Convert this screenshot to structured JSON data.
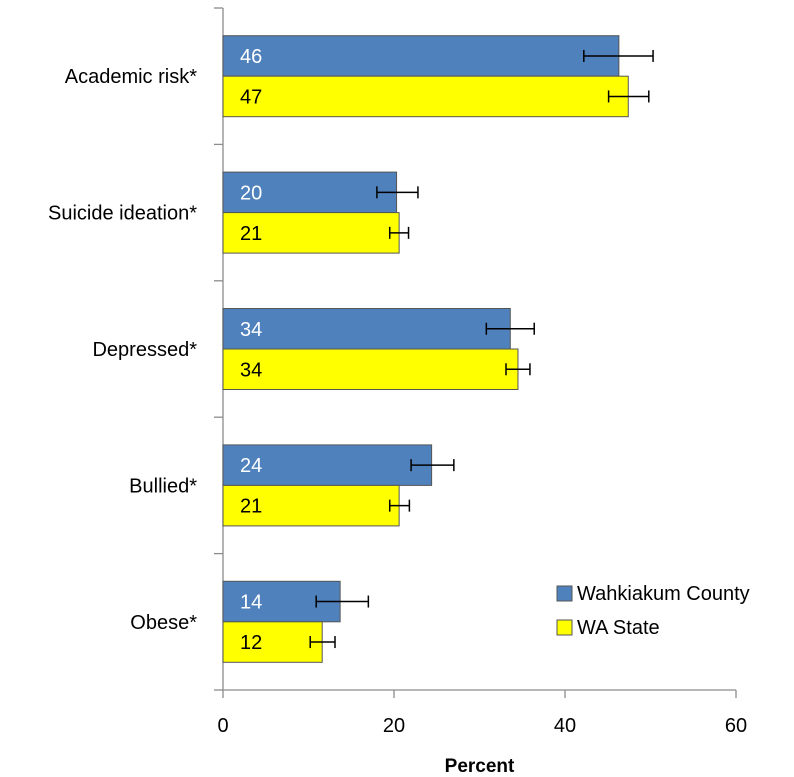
{
  "chart_data": {
    "type": "bar",
    "orientation": "horizontal",
    "categories": [
      "Academic risk*",
      "Suicide ideation*",
      "Depressed*",
      "Bullied*",
      "Obese*"
    ],
    "series": [
      {
        "name": "Wahkiakum County",
        "color": "#4F81BD",
        "label_color": "#FFFFFF",
        "values": [
          46.3,
          20.3,
          33.6,
          24.4,
          13.7
        ],
        "labels": [
          "46",
          "20",
          "34",
          "24",
          "14"
        ],
        "error_low": [
          42.2,
          18.0,
          30.8,
          22.0,
          10.9
        ],
        "error_high": [
          50.3,
          22.8,
          36.4,
          27.0,
          17.0
        ]
      },
      {
        "name": "WA State",
        "color": "#FFFF00",
        "label_color": "#000000",
        "values": [
          47.4,
          20.6,
          34.5,
          20.6,
          11.6
        ],
        "labels": [
          "47",
          "21",
          "34",
          "21",
          "12"
        ],
        "error_low": [
          45.1,
          19.5,
          33.1,
          19.5,
          10.2
        ],
        "error_high": [
          49.8,
          21.7,
          35.9,
          21.8,
          13.1
        ]
      }
    ],
    "xlabel": "Percent",
    "xlim": [
      0,
      60
    ],
    "xticks": [
      "0",
      "20",
      "40",
      "60"
    ],
    "grid": false,
    "legend_position": "bottom-right"
  }
}
